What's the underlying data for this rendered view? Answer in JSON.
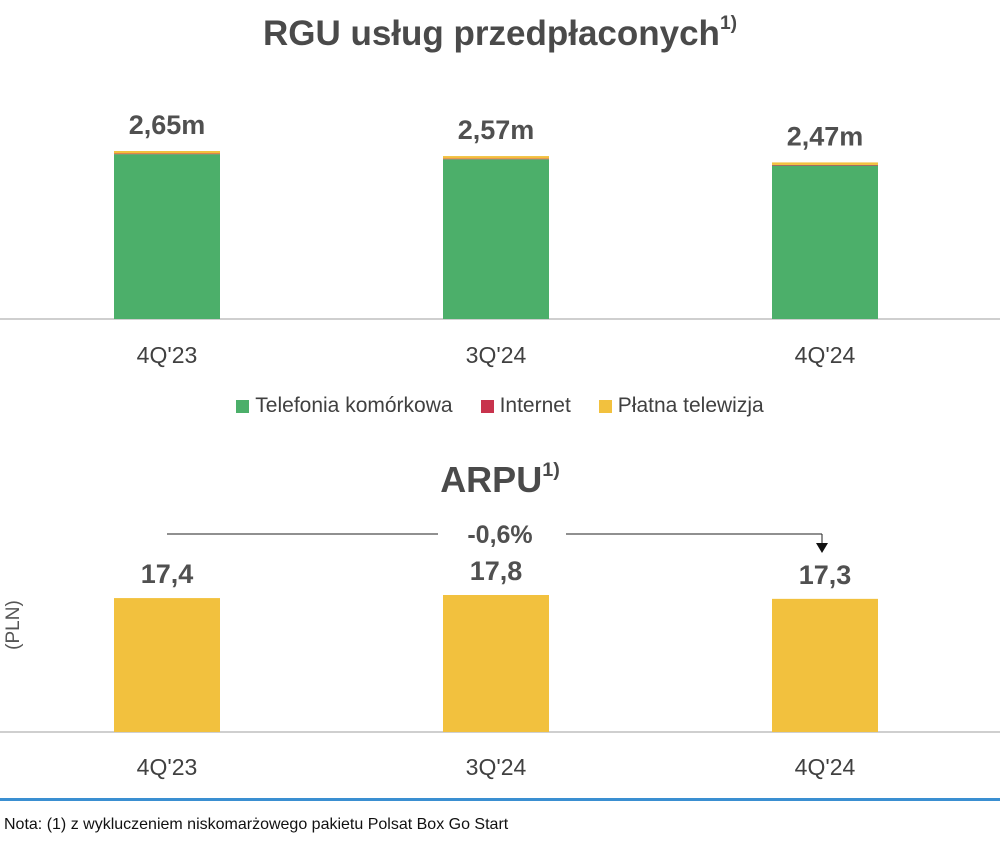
{
  "rgu": {
    "title": "RGU usług przedpłaconych",
    "title_sup": "1)",
    "legend": [
      {
        "label": "Telefonia komórkowa",
        "color": "#4caf6a"
      },
      {
        "label": "Internet",
        "color": "#c8334d"
      },
      {
        "label": "Płatna telewizja",
        "color": "#f2c13e"
      }
    ]
  },
  "arpu": {
    "title": "ARPU",
    "title_sup": "1)",
    "unit_label": "(PLN)",
    "change_label": "-0,6%"
  },
  "footnote": "Nota: (1) z wykluczeniem niskomarżowego pakietu Polsat Box Go Start",
  "chart_data": [
    {
      "type": "bar",
      "stacked": true,
      "title": "RGU usług przedpłaconych",
      "categories": [
        "4Q'23",
        "3Q'24",
        "4Q'24"
      ],
      "totals": [
        "2,65m",
        "2,57m",
        "2,47m"
      ],
      "total_values": [
        2.65,
        2.57,
        2.47
      ],
      "series": [
        {
          "name": "Telefonia komórkowa",
          "color": "#4caf6a",
          "values": [
            2.6,
            2.52,
            2.42
          ]
        },
        {
          "name": "Internet",
          "color": "#c8334d",
          "values": [
            0.01,
            0.01,
            0.01
          ]
        },
        {
          "name": "Płatna telewizja",
          "color": "#f2c13e",
          "values": [
            0.04,
            0.04,
            0.04
          ]
        }
      ],
      "ylim": [
        0,
        2.65
      ],
      "legend_position": "bottom",
      "grid": false
    },
    {
      "type": "bar",
      "title": "ARPU",
      "ylabel": "(PLN)",
      "categories": [
        "4Q'23",
        "3Q'24",
        "4Q'24"
      ],
      "values": [
        17.4,
        17.8,
        17.3
      ],
      "value_labels": [
        "17,4",
        "17,8",
        "17,3"
      ],
      "color": "#f2c13e",
      "ylim": [
        0,
        17.8
      ],
      "annotation": "-0,6%",
      "grid": false
    }
  ]
}
